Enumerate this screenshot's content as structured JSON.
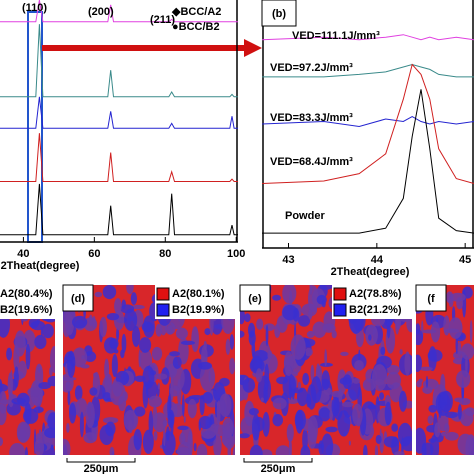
{
  "chart_data": [
    {
      "type": "line",
      "xlabel": "2Theat(degree)",
      "xlim": [
        33.4,
        100.5
      ],
      "ylim": [
        0,
        100
      ],
      "xticks": [
        40,
        60,
        80,
        100
      ],
      "x": [
        33.4,
        43.5,
        44.5,
        45.5,
        63.8,
        64.6,
        65.4,
        81,
        81.8,
        82.6,
        98.2,
        98.8,
        99.4,
        100.5
      ],
      "series": [
        {
          "color": "#e040e0",
          "values": [
            91,
            91,
            100,
            91,
            91,
            98,
            91,
            91,
            92,
            91,
            91,
            91,
            91,
            91
          ]
        },
        {
          "color": "#3a8a8a",
          "values": [
            60,
            60,
            90,
            60,
            60,
            71,
            60,
            60,
            62,
            60,
            60,
            61,
            60,
            60
          ]
        },
        {
          "color": "#2424d0",
          "values": [
            47,
            47,
            60,
            47,
            47,
            54,
            47,
            47,
            49,
            47,
            47,
            52,
            47,
            47
          ]
        },
        {
          "color": "#d02020",
          "values": [
            25,
            25,
            45,
            25,
            25,
            37,
            25,
            25,
            29,
            25,
            25,
            26,
            25,
            25
          ]
        },
        {
          "color": "#000000",
          "values": [
            3,
            3,
            24,
            3,
            3,
            15,
            3,
            3,
            20,
            3,
            3,
            7,
            3,
            3
          ]
        }
      ],
      "annotations": [
        "(110)",
        "(200)",
        "(211)",
        "◆BCC/A2",
        "●BCC/B2"
      ]
    },
    {
      "type": "line",
      "title": "(b)",
      "xlabel": "2Theat(degree)",
      "xlim": [
        42.7,
        45.1
      ],
      "ylim": [
        0,
        100
      ],
      "xticks": [
        43,
        44,
        45
      ],
      "x": [
        42.7,
        43.4,
        43.8,
        44.1,
        44.3,
        44.4,
        44.5,
        44.6,
        44.7,
        44.9,
        45.1
      ],
      "series": [
        {
          "name": "VED=111.1J/mm³",
          "color": "#e040e0",
          "values": [
            84,
            85,
            84,
            85,
            86,
            85,
            84,
            85,
            84,
            85,
            84
          ]
        },
        {
          "name": "VED=97.2J/mm³",
          "color": "#3a8a8a",
          "values": [
            69,
            69,
            70,
            71,
            73,
            74,
            73,
            72,
            70,
            69,
            69
          ]
        },
        {
          "name": "VED=83.3J/mm³",
          "color": "#2424d0",
          "values": [
            50,
            51,
            49,
            52,
            51,
            53,
            51,
            50,
            51,
            50,
            51
          ]
        },
        {
          "name": "VED=68.4J/mm³",
          "color": "#d02020",
          "values": [
            26,
            27,
            30,
            38,
            60,
            74,
            70,
            60,
            40,
            28,
            26
          ]
        },
        {
          "name": "Powder",
          "color": "#000000",
          "values": [
            6,
            6,
            6,
            8,
            20,
            45,
            64,
            40,
            12,
            7,
            6
          ]
        }
      ]
    }
  ],
  "ebsd_panels": [
    {
      "a2": "A2(80.4%)",
      "b2": "B2(19.6%)"
    },
    {
      "label": "(d)",
      "a2": "A2(80.1%)",
      "b2": "B2(19.9%)",
      "scale": "250μm"
    },
    {
      "label": "(e)",
      "a2": "A2(78.8%)",
      "b2": "B2(21.2%)",
      "scale": "250μm"
    },
    {
      "label": "(f"
    }
  ]
}
